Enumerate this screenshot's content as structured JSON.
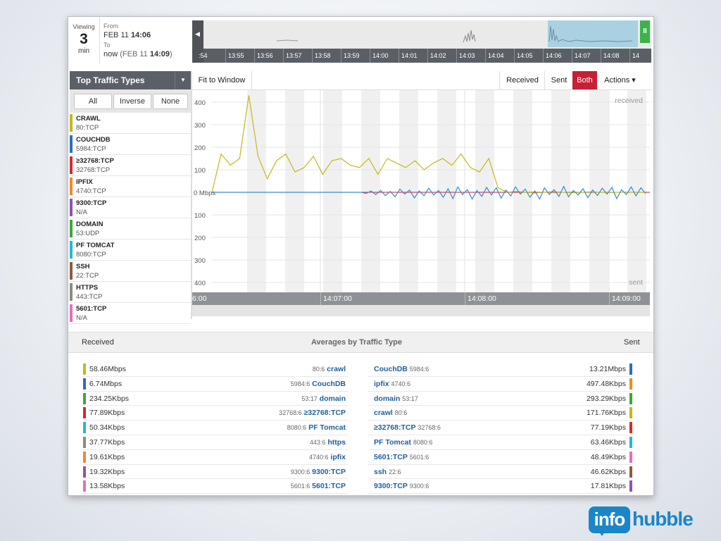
{
  "viewing": {
    "label": "Viewing",
    "value": "3",
    "unit": "min"
  },
  "range": {
    "from_label": "From",
    "from_date": "FEB 11",
    "from_time": "14:06",
    "to_label": "To",
    "to_now": "now",
    "to_paren_date": "(FEB 11",
    "to_time": "14:09",
    "to_close": ")"
  },
  "overview": {
    "left_label": ":54",
    "ticks": [
      "13:55",
      "13:56",
      "13:57",
      "13:58",
      "13:59",
      "14:00",
      "14:01",
      "14:02",
      "14:03",
      "14:04",
      "14:05",
      "14:06",
      "14:07",
      "14:08",
      "14"
    ],
    "pause_icon": "pause-icon"
  },
  "sidebar": {
    "title": "Top Traffic Types",
    "filters": {
      "all": "All",
      "inverse": "Inverse",
      "none": "None"
    },
    "types": [
      {
        "name": "CRAWL",
        "port": "80:TCP",
        "color": "#c4b81a"
      },
      {
        "name": "COUCHDB",
        "port": "5984:TCP",
        "color": "#2b6fb3"
      },
      {
        "name": "≥32768:TCP",
        "port": "32768:TCP",
        "color": "#d62a2a"
      },
      {
        "name": "IPFIX",
        "port": "4740:TCP",
        "color": "#f08a24"
      },
      {
        "name": "9300:TCP",
        "port": "N/A",
        "color": "#8e54b0"
      },
      {
        "name": "DOMAIN",
        "port": "53:UDP",
        "color": "#3aa83a"
      },
      {
        "name": "PF TOMCAT",
        "port": "8080:TCP",
        "color": "#28b6d6"
      },
      {
        "name": "SSH",
        "port": "22:TCP",
        "color": "#8b5a44"
      },
      {
        "name": "HTTPS",
        "port": "443:TCP",
        "color": "#8a8a8a"
      },
      {
        "name": "5601:TCP",
        "port": "N/A",
        "color": "#e36fb8"
      }
    ]
  },
  "toolbar": {
    "fit": "Fit to Window",
    "received": "Received",
    "sent": "Sent",
    "both": "Both",
    "actions": "Actions ▾"
  },
  "chart_data": {
    "type": "line",
    "y_ticks_received": [
      "400",
      "300",
      "200",
      "100"
    ],
    "zero_label": "0 Mbps",
    "y_ticks_sent": [
      "100",
      "200",
      "300",
      "400"
    ],
    "corner_top": "received",
    "corner_bottom": "sent",
    "x_ticks": [
      "6:00",
      "14:07:00",
      "14:08:00",
      "14:09:00"
    ],
    "ylim": [
      -400,
      440
    ],
    "series": [
      {
        "name": "crawl",
        "color": "#c4b81a",
        "values": [
          0,
          170,
          120,
          150,
          430,
          160,
          60,
          140,
          170,
          90,
          110,
          160,
          80,
          140,
          150,
          120,
          110,
          150,
          80,
          150,
          130,
          110,
          140,
          100,
          130,
          150,
          120,
          170,
          110,
          90,
          150,
          20,
          0,
          4,
          0,
          -3,
          0,
          3,
          0,
          -2,
          0,
          2,
          0,
          -1,
          0,
          1,
          0,
          0
        ]
      },
      {
        "name": "couchdb",
        "color": "#3b8bd0",
        "values": [
          0,
          0,
          0,
          0,
          0,
          0,
          0,
          0,
          0,
          0,
          0,
          0,
          0,
          0,
          0,
          0,
          0,
          0,
          0,
          0,
          0,
          0,
          0,
          0,
          0,
          0,
          0,
          0,
          0,
          0,
          0,
          0,
          -5,
          6,
          -10,
          8,
          -14,
          4,
          -20,
          14,
          -8,
          10,
          -25,
          6,
          -15,
          18,
          -12,
          8,
          -22,
          16,
          -28,
          24,
          -10,
          12,
          -30,
          8,
          -18,
          22,
          -12,
          20,
          -26,
          10,
          -16,
          24,
          -8,
          14,
          -22,
          6,
          -30,
          20,
          -10,
          12,
          -18,
          26,
          -20,
          8,
          -12,
          16,
          -24,
          10,
          -14,
          18,
          -8,
          22,
          -28,
          12,
          -10,
          24,
          -16,
          20,
          -6
        ]
      }
    ]
  },
  "averages": {
    "received_label": "Received",
    "title": "Averages by Traffic Type",
    "sent_label": "Sent",
    "received": [
      {
        "val": "58.46Mbps",
        "port": "80:6",
        "name": "crawl",
        "color": "#c4b81a"
      },
      {
        "val": "6.74Mbps",
        "port": "5984:6",
        "name": "CouchDB",
        "color": "#2b6fb3"
      },
      {
        "val": "234.25Kbps",
        "port": "53:17",
        "name": "domain",
        "color": "#3aa83a"
      },
      {
        "val": "77.89Kbps",
        "port": "32768:6",
        "name": "≥32768:TCP",
        "color": "#d62a2a"
      },
      {
        "val": "50.34Kbps",
        "port": "8080:6",
        "name": "PF Tomcat",
        "color": "#28b6d6"
      },
      {
        "val": "37.77Kbps",
        "port": "443:6",
        "name": "https",
        "color": "#8a8a8a"
      },
      {
        "val": "19.61Kbps",
        "port": "4740:6",
        "name": "ipfix",
        "color": "#f08a24"
      },
      {
        "val": "19.32Kbps",
        "port": "9300:6",
        "name": "9300:TCP",
        "color": "#8e54b0"
      },
      {
        "val": "13.58Kbps",
        "port": "5601:6",
        "name": "5601:TCP",
        "color": "#e36fb8"
      }
    ],
    "sent": [
      {
        "name": "CouchDB",
        "port": "5984:6",
        "val": "13.21Mbps",
        "color": "#2b6fb3"
      },
      {
        "name": "ipfix",
        "port": "4740:6",
        "val": "497.48Kbps",
        "color": "#f08a24"
      },
      {
        "name": "domain",
        "port": "53:17",
        "val": "293.29Kbps",
        "color": "#3aa83a"
      },
      {
        "name": "crawl",
        "port": "80:6",
        "val": "171.76Kbps",
        "color": "#c4b81a"
      },
      {
        "name": "≥32768:TCP",
        "port": "32768:6",
        "val": "77.19Kbps",
        "color": "#d62a2a"
      },
      {
        "name": "PF Tomcat",
        "port": "8080:6",
        "val": "63.46Kbps",
        "color": "#28b6d6"
      },
      {
        "name": "5601:TCP",
        "port": "5601:6",
        "val": "48.49Kbps",
        "color": "#e36fb8"
      },
      {
        "name": "ssh",
        "port": "22:6",
        "val": "46.62Kbps",
        "color": "#8b5a44"
      },
      {
        "name": "9300:TCP",
        "port": "9300:6",
        "val": "17.81Kbps",
        "color": "#8e54b0"
      }
    ]
  },
  "logo": {
    "info": "info",
    "hubble": "hubble"
  }
}
